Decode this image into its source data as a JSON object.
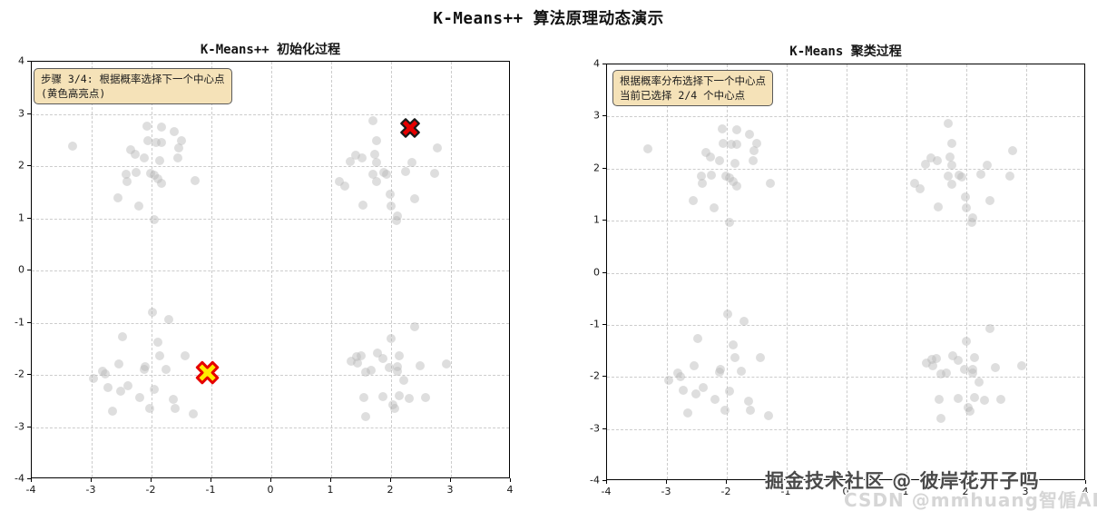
{
  "figure": {
    "title": "K-Means++ 算法原理动态演示"
  },
  "watermarks": {
    "line1": "掘金技术社区 @ 彼岸花开子吗",
    "line2": "CSDN @mmhuang智偱AI"
  },
  "colors": {
    "background": "#ffffff",
    "scatter_point": "#dcdcdc",
    "grid": "#cccccc",
    "spine": "#000000",
    "annotation_bg": "#f5e2b8",
    "annotation_border": "#5a5a5a",
    "selected_center_fill": "#e60000",
    "selected_center_edge": "#1a1a1a",
    "candidate_center_fill": "#ffee00",
    "candidate_center_edge": "#e60000"
  },
  "chart_data": {
    "type": "scatter",
    "suptitle": "K-Means++ 算法原理动态演示",
    "xlim": [
      -4,
      4
    ],
    "ylim": [
      -4,
      4
    ],
    "xticks": [
      -4,
      -3,
      -2,
      -1,
      0,
      1,
      2,
      3,
      4
    ],
    "yticks": [
      -4,
      -3,
      -2,
      -1,
      0,
      1,
      2,
      3,
      4
    ],
    "grid": "dashed",
    "points_color_name": "lightgray",
    "points": [
      [
        -3.32,
        2.38
      ],
      [
        -2.07,
        2.76
      ],
      [
        -1.83,
        2.74
      ],
      [
        -1.62,
        2.66
      ],
      [
        -2.06,
        2.49
      ],
      [
        -1.93,
        2.46
      ],
      [
        -1.84,
        2.46
      ],
      [
        -1.5,
        2.48
      ],
      [
        -1.54,
        2.35
      ],
      [
        -2.35,
        2.31
      ],
      [
        -2.27,
        2.23
      ],
      [
        -2.12,
        2.16
      ],
      [
        -1.86,
        2.1
      ],
      [
        -1.56,
        2.16
      ],
      [
        -2.43,
        1.85
      ],
      [
        -2.26,
        1.87
      ],
      [
        -2.41,
        1.71
      ],
      [
        -2.01,
        1.86
      ],
      [
        -1.96,
        1.82
      ],
      [
        -1.89,
        1.76
      ],
      [
        -1.83,
        1.67
      ],
      [
        -1.27,
        1.72
      ],
      [
        -2.56,
        1.39
      ],
      [
        -2.21,
        1.24
      ],
      [
        -1.96,
        0.97
      ],
      [
        1.69,
        2.87
      ],
      [
        1.75,
        2.49
      ],
      [
        2.77,
        2.35
      ],
      [
        1.41,
        2.21
      ],
      [
        1.51,
        2.16
      ],
      [
        1.32,
        2.09
      ],
      [
        1.73,
        2.22
      ],
      [
        1.75,
        2.07
      ],
      [
        2.35,
        2.07
      ],
      [
        1.7,
        1.85
      ],
      [
        1.88,
        1.87
      ],
      [
        1.93,
        1.84
      ],
      [
        2.24,
        1.89
      ],
      [
        2.73,
        1.86
      ],
      [
        1.13,
        1.71
      ],
      [
        1.23,
        1.61
      ],
      [
        1.75,
        1.7
      ],
      [
        1.98,
        1.46
      ],
      [
        2.4,
        1.38
      ],
      [
        1.53,
        1.26
      ],
      [
        2.0,
        1.24
      ],
      [
        2.11,
        1.05
      ],
      [
        2.09,
        0.96
      ],
      [
        -1.98,
        -0.8
      ],
      [
        -1.71,
        -0.94
      ],
      [
        -2.48,
        -1.27
      ],
      [
        -1.89,
        -1.38
      ],
      [
        -1.86,
        -1.63
      ],
      [
        -1.44,
        -1.63
      ],
      [
        -2.55,
        -1.79
      ],
      [
        -2.1,
        -1.85
      ],
      [
        -2.12,
        -1.9
      ],
      [
        -1.76,
        -1.89
      ],
      [
        -2.82,
        -1.93
      ],
      [
        -2.78,
        -1.99
      ],
      [
        -2.97,
        -2.07
      ],
      [
        -2.73,
        -2.25
      ],
      [
        -2.4,
        -2.2
      ],
      [
        -2.52,
        -2.32
      ],
      [
        -1.95,
        -2.28
      ],
      [
        -2.2,
        -2.44
      ],
      [
        -2.03,
        -2.64
      ],
      [
        -1.63,
        -2.47
      ],
      [
        -1.6,
        -2.64
      ],
      [
        -2.65,
        -2.69
      ],
      [
        -1.31,
        -2.74
      ],
      [
        2.4,
        -1.08
      ],
      [
        2.0,
        -1.31
      ],
      [
        1.77,
        -1.59
      ],
      [
        1.87,
        -1.68
      ],
      [
        1.42,
        -1.66
      ],
      [
        1.5,
        -1.64
      ],
      [
        1.34,
        -1.74
      ],
      [
        1.44,
        -1.78
      ],
      [
        2.13,
        -1.63
      ],
      [
        1.57,
        -1.94
      ],
      [
        1.67,
        -1.92
      ],
      [
        1.97,
        -1.86
      ],
      [
        2.11,
        -1.85
      ],
      [
        2.11,
        -1.93
      ],
      [
        2.48,
        -1.83
      ],
      [
        2.92,
        -1.79
      ],
      [
        2.21,
        -2.1
      ],
      [
        1.55,
        -2.44
      ],
      [
        1.86,
        -2.41
      ],
      [
        2.14,
        -2.4
      ],
      [
        2.31,
        -2.45
      ],
      [
        2.58,
        -2.44
      ],
      [
        2.03,
        -2.58
      ],
      [
        2.06,
        -2.65
      ],
      [
        1.57,
        -2.8
      ]
    ],
    "plots": [
      {
        "id": "init-process",
        "title": "K-Means++ 初始化过程",
        "annotation_line1": "步骤 3/4: 根据概率选择下一个中心点",
        "annotation_line2": "(黄色高亮点)",
        "centers": [
          {
            "name": "selected-center",
            "x": 2.32,
            "y": 2.73,
            "marker": "X",
            "fill": "#e60000",
            "edge": "#1a1a1a",
            "size": 20,
            "edge_width": 2.2
          },
          {
            "name": "candidate-center-highlight",
            "x": -1.06,
            "y": -1.95,
            "marker": "X",
            "fill": "#ffee00",
            "edge": "#e60000",
            "size": 23,
            "edge_width": 3
          }
        ]
      },
      {
        "id": "clustering-process",
        "title": "K-Means 聚类过程",
        "annotation_line1": "根据概率分布选择下一个中心点",
        "annotation_line2": "当前已选择 2/4 个中心点",
        "centers": []
      }
    ]
  }
}
